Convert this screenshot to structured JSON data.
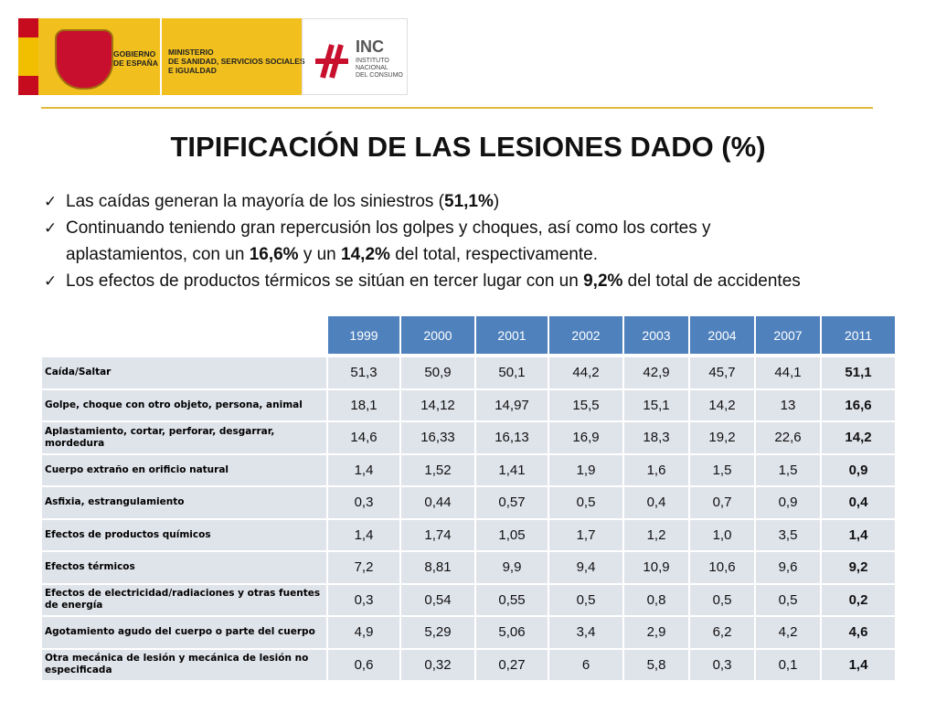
{
  "header": {
    "gobierno": "GOBIERNO DE ESPAÑA",
    "ministerio": [
      "MINISTERIO",
      "DE SANIDAD, SERVICIOS SOCIALES",
      "E IGUALDAD"
    ],
    "inc": "INC",
    "inc_name": [
      "INSTITUTO",
      "NACIONAL",
      "DEL CONSUMO"
    ]
  },
  "title": "TIPIFICACIÓN DE LAS LESIONES DADO (%)",
  "bullets": [
    [
      "Las caídas generan la mayoría de los siniestros (",
      "51,1%",
      ")"
    ],
    [
      "Continuando teniendo gran repercusión los golpes y choques, así como los cortes y aplastamientos, con un ",
      "16,6%",
      " y un ",
      "14,2%",
      " del total, respectivamente."
    ],
    [
      "Los efectos de productos térmicos se sitúan en tercer lugar con un ",
      "9,2%",
      " del total de accidentes"
    ]
  ],
  "table": {
    "columns": [
      "1999",
      "2000",
      "2001",
      "2002",
      "2003",
      "2004",
      "2007",
      "2011"
    ],
    "rows": [
      {
        "label": "Caída/Saltar",
        "cells": [
          "51,3",
          "50,9",
          "50,1",
          "44,2",
          "42,9",
          "45,7",
          "44,1",
          "51,1"
        ]
      },
      {
        "label": "Golpe, choque con otro objeto, persona, animal",
        "cells": [
          "18,1",
          "14,12",
          "14,97",
          "15,5",
          "15,1",
          "14,2",
          "13",
          "16,6"
        ]
      },
      {
        "label": "Aplastamiento, cortar, perforar, desgarrar, mordedura",
        "cells": [
          "14,6",
          "16,33",
          "16,13",
          "16,9",
          "18,3",
          "19,2",
          "22,6",
          "14,2"
        ]
      },
      {
        "label": "Cuerpo extraño en orificio natural",
        "cells": [
          "1,4",
          "1,52",
          "1,41",
          "1,9",
          "1,6",
          "1,5",
          "1,5",
          "0,9"
        ]
      },
      {
        "label": "Asfixia, estrangulamiento",
        "cells": [
          "0,3",
          "0,44",
          "0,57",
          "0,5",
          "0,4",
          "0,7",
          "0,9",
          "0,4"
        ]
      },
      {
        "label": "Efectos de productos químicos",
        "cells": [
          "1,4",
          "1,74",
          "1,05",
          "1,7",
          "1,2",
          "1,0",
          "3,5",
          "1,4"
        ]
      },
      {
        "label": "Efectos térmicos",
        "cells": [
          "7,2",
          "8,81",
          "9,9",
          "9,4",
          "10,9",
          "10,6",
          "9,6",
          "9,2"
        ]
      },
      {
        "label": "Efectos de electricidad/radiaciones y otras fuentes de energía",
        "cells": [
          "0,3",
          "0,54",
          "0,55",
          "0,5",
          "0,8",
          "0,5",
          "0,5",
          "0,2"
        ]
      },
      {
        "label": "Agotamiento agudo del cuerpo o parte del cuerpo",
        "cells": [
          "4,9",
          "5,29",
          "5,06",
          "3,4",
          "2,9",
          "6,2",
          "4,2",
          "4,6"
        ]
      },
      {
        "label": "Otra mecánica de lesión y mecánica de lesión no especificada",
        "cells": [
          "0,6",
          "0,32",
          "0,27",
          "6",
          "5,8",
          "0,3",
          "0,1",
          "1,4"
        ]
      }
    ]
  }
}
